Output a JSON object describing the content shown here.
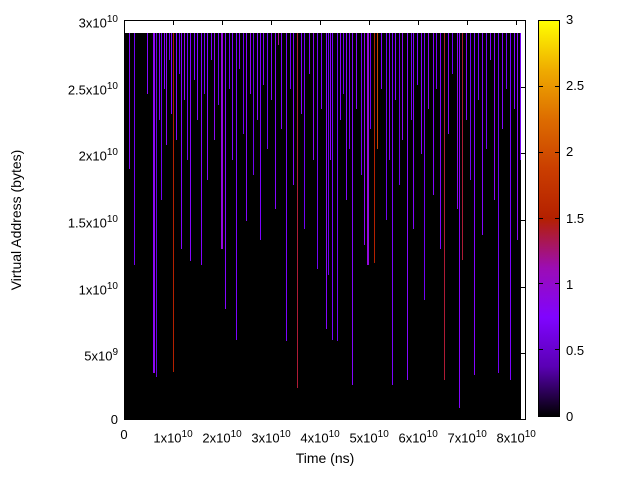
{
  "figure": {
    "background_color": "#ffffff",
    "frame_color": "#000000",
    "heatmap_background": "#000000"
  },
  "chart_data": {
    "type": "heatmap",
    "title": "",
    "xlabel": "Time (ns)",
    "ylabel": "Virtual Address (bytes)",
    "xlim": [
      0,
      82000000000.0
    ],
    "ylim": [
      0,
      30000000000.0
    ],
    "grid": false,
    "xticks": [
      {
        "label": "0",
        "value": 0
      },
      {
        "label": "1x10^10",
        "value": 10000000000.0
      },
      {
        "label": "2x10^10",
        "value": 20000000000.0
      },
      {
        "label": "3x10^10",
        "value": 30000000000.0
      },
      {
        "label": "4x10^10",
        "value": 40000000000.0
      },
      {
        "label": "5x10^10",
        "value": 50000000000.0
      },
      {
        "label": "6x10^10",
        "value": 60000000000.0
      },
      {
        "label": "7x10^10",
        "value": 70000000000.0
      },
      {
        "label": "8x10^10",
        "value": 80000000000.0
      }
    ],
    "yticks": [
      {
        "label": "0",
        "value": 0
      },
      {
        "label": "5x10^9",
        "value": 5000000000.0
      },
      {
        "label": "1x10^10",
        "value": 10000000000.0
      },
      {
        "label": "1.5x10^10",
        "value": 15000000000.0
      },
      {
        "label": "2x10^10",
        "value": 20000000000.0
      },
      {
        "label": "2.5x10^10",
        "value": 25000000000.0
      },
      {
        "label": "3x10^10",
        "value": 30000000000.0
      }
    ],
    "colorbar": {
      "min": 0,
      "max": 3,
      "ticks": [
        {
          "label": "0",
          "value": 0
        },
        {
          "label": "0.5",
          "value": 0.5
        },
        {
          "label": "1",
          "value": 1
        },
        {
          "label": "1.5",
          "value": 1.5
        },
        {
          "label": "2",
          "value": 2
        },
        {
          "label": "2.5",
          "value": 2.5
        },
        {
          "label": "3",
          "value": 3
        }
      ],
      "position": "right",
      "palette": "gnuplot default pm3d (rgbformulae 7,5,15): r=sqrt(f), g=f^3, b=sin(360*f)"
    },
    "data_extent": {
      "t_max": 81000000000.0,
      "addr_max": 29000000000.0
    },
    "lines_format": [
      "time_ns",
      "addr_min_bytes",
      "palette_value",
      "width_px(optional)"
    ],
    "lines": [
      [
        820000000.0,
        18800000000.0,
        0.8
      ],
      [
        1840000000.0,
        11600000000.0,
        0.6
      ],
      [
        4490000000.0,
        24400000000.0,
        0.8
      ],
      [
        5710000000.0,
        3500000000.0,
        0.9,
        2
      ],
      [
        6330000000.0,
        3200000000.0,
        0.5
      ],
      [
        6940000000.0,
        22500000000.0,
        0.8
      ],
      [
        7350000000.0,
        16500000000.0,
        0.6
      ],
      [
        7960000000.0,
        24800000000.0,
        0.8
      ],
      [
        8370000000.0,
        20600000000.0,
        0.9
      ],
      [
        8980000000.0,
        27000000000.0,
        0.6
      ],
      [
        9390000000.0,
        22900000000.0,
        0.8
      ],
      [
        9800000000.0,
        3600000000.0,
        1.5
      ],
      [
        10400000000.0,
        21000000000.0,
        0.8
      ],
      [
        11000000000.0,
        25900000000.0,
        0.6
      ],
      [
        11400000000.0,
        12800000000.0,
        0.8
      ],
      [
        12000000000.0,
        24000000000.0,
        0.9
      ],
      [
        12700000000.0,
        19500000000.0,
        0.6
      ],
      [
        13300000000.0,
        11900000000.0,
        0.8
      ],
      [
        14100000000.0,
        25500000000.0,
        0.7
      ],
      [
        14700000000.0,
        22500000000.0,
        0.8
      ],
      [
        15500000000.0,
        11600000000.0,
        0.8
      ],
      [
        16100000000.0,
        24400000000.0,
        0.6
      ],
      [
        16700000000.0,
        18000000000.0,
        0.8
      ],
      [
        17600000000.0,
        27000000000.0,
        0.7
      ],
      [
        18200000000.0,
        21000000000.0,
        0.9
      ],
      [
        19000000000.0,
        23600000000.0,
        0.6
      ],
      [
        19600000000.0,
        12800000000.0,
        1.0,
        2
      ],
      [
        20400000000.0,
        8300000000.0,
        0.8
      ],
      [
        21200000000.0,
        24800000000.0,
        0.6
      ],
      [
        21800000000.0,
        19500000000.0,
        0.8
      ],
      [
        22700000000.0,
        6000000000.0,
        0.7
      ],
      [
        23300000000.0,
        26300000000.0,
        0.8
      ],
      [
        24100000000.0,
        21400000000.0,
        0.6
      ],
      [
        24700000000.0,
        14900000000.0,
        0.8
      ],
      [
        25500000000.0,
        24400000000.0,
        0.9
      ],
      [
        26100000000.0,
        18400000000.0,
        0.6
      ],
      [
        26900000000.0,
        22500000000.0,
        0.8
      ],
      [
        27600000000.0,
        13500000000.0,
        0.7
      ],
      [
        28200000000.0,
        25100000000.0,
        0.8
      ],
      [
        29000000000.0,
        20300000000.0,
        0.6
      ],
      [
        29800000000.0,
        24000000000.0,
        0.8
      ],
      [
        30600000000.0,
        15800000000.0,
        0.8
      ],
      [
        31200000000.0,
        28100000000.0,
        1.2
      ],
      [
        32000000000.0,
        21800000000.0,
        0.8
      ],
      [
        32900000000.0,
        5900000000.0,
        0.7
      ],
      [
        33700000000.0,
        24800000000.0,
        0.6
      ],
      [
        34300000000.0,
        17600000000.0,
        0.8
      ],
      [
        35100000000.0,
        2400000000.0,
        1.4
      ],
      [
        35900000000.0,
        22900000000.0,
        0.8
      ],
      [
        36700000000.0,
        14300000000.0,
        0.6
      ],
      [
        37600000000.0,
        25900000000.0,
        0.8
      ],
      [
        38400000000.0,
        19500000000.0,
        0.9
      ],
      [
        39200000000.0,
        11300000000.0,
        0.6
      ],
      [
        40000000000.0,
        23300000000.0,
        0.8
      ],
      [
        41200000000.0,
        6800000000.0,
        0.8
      ],
      [
        41600000000.0,
        10900000000.0,
        0.6
      ],
      [
        42000000000.0,
        19500000000.0,
        0.9
      ],
      [
        42400000000.0,
        6000000000.0,
        0.7
      ],
      [
        43300000000.0,
        5900000000.0,
        0.6
      ],
      [
        43900000000.0,
        22500000000.0,
        0.8
      ],
      [
        44500000000.0,
        24400000000.0,
        0.6
      ],
      [
        45100000000.0,
        16500000000.0,
        0.8
      ],
      [
        45900000000.0,
        20300000000.0,
        0.7
      ],
      [
        46500000000.0,
        2600000000.0,
        0.8
      ],
      [
        47300000000.0,
        23300000000.0,
        0.8
      ],
      [
        48200000000.0,
        18400000000.0,
        0.6
      ],
      [
        48800000000.0,
        13100000000.0,
        0.9
      ],
      [
        49400000000.0,
        11600000000.0,
        1.0,
        2
      ],
      [
        50200000000.0,
        21800000000.0,
        0.6
      ],
      [
        51000000000.0,
        11800000000.0,
        1.5
      ],
      [
        51600000000.0,
        20300000000.0,
        1.9
      ],
      [
        52400000000.0,
        24800000000.0,
        0.8
      ],
      [
        53300000000.0,
        15000000000.0,
        0.6
      ],
      [
        53900000000.0,
        19500000000.0,
        0.8
      ],
      [
        54700000000.0,
        2600000000.0,
        0.7
      ],
      [
        55300000000.0,
        24000000000.0,
        0.8
      ],
      [
        56100000000.0,
        17600000000.0,
        0.6
      ],
      [
        56700000000.0,
        21000000000.0,
        0.9
      ],
      [
        57600000000.0,
        3000000000.0,
        0.8
      ],
      [
        58400000000.0,
        22500000000.0,
        0.6
      ],
      [
        59000000000.0,
        14300000000.0,
        0.8
      ],
      [
        59800000000.0,
        25100000000.0,
        0.7
      ],
      [
        60600000000.0,
        19900000000.0,
        0.8
      ],
      [
        61200000000.0,
        9000000000.0,
        0.6
      ],
      [
        62000000000.0,
        23300000000.0,
        0.9
      ],
      [
        62900000000.0,
        16900000000.0,
        0.8
      ],
      [
        63700000000.0,
        24800000000.0,
        0.6
      ],
      [
        64500000000.0,
        12800000000.0,
        0.8
      ],
      [
        65300000000.0,
        3000000000.0,
        1.4
      ],
      [
        66100000000.0,
        21400000000.0,
        0.8
      ],
      [
        66900000000.0,
        25900000000.0,
        0.6
      ],
      [
        67800000000.0,
        15800000000.0,
        0.9
      ],
      [
        68400000000.0,
        900000000.0,
        0.8
      ],
      [
        69000000000.0,
        12000000000.0,
        1.4
      ],
      [
        69800000000.0,
        22500000000.0,
        0.8
      ],
      [
        70600000000.0,
        18000000000.0,
        0.6
      ],
      [
        71400000000.0,
        3400000000.0,
        0.8
      ],
      [
        72200000000.0,
        24000000000.0,
        0.7
      ],
      [
        73100000000.0,
        13900000000.0,
        0.8
      ],
      [
        73900000000.0,
        20300000000.0,
        0.6
      ],
      [
        74700000000.0,
        27000000000.0,
        0.8
      ],
      [
        75500000000.0,
        16500000000.0,
        0.9
      ],
      [
        76300000000.0,
        3500000000.0,
        0.6
      ],
      [
        77100000000.0,
        21800000000.0,
        0.8
      ],
      [
        78000000000.0,
        24800000000.0,
        0.6
      ],
      [
        78800000000.0,
        3000000000.0,
        0.7
      ],
      [
        79600000000.0,
        23300000000.0,
        0.8
      ],
      [
        80200000000.0,
        13500000000.0,
        0.9
      ],
      [
        80800000000.0,
        19500000000.0,
        0.6
      ]
    ]
  }
}
